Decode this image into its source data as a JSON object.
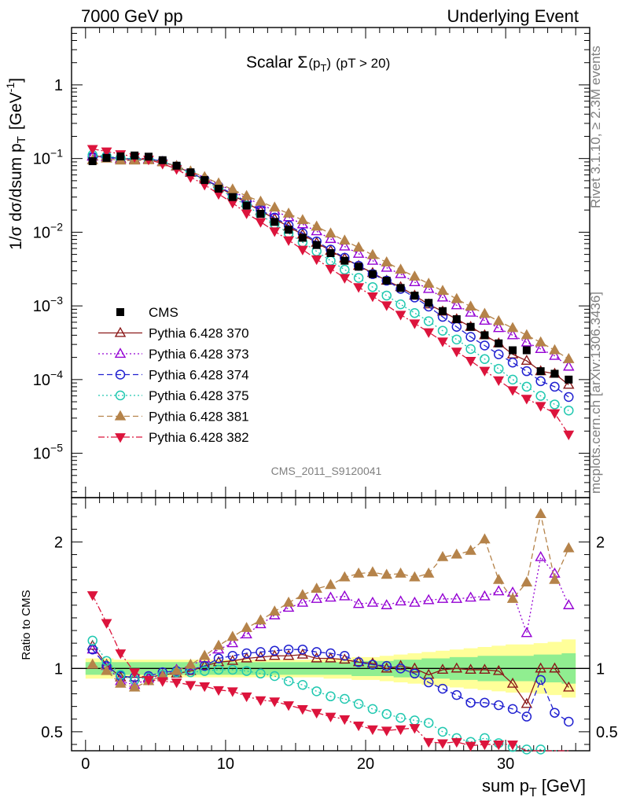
{
  "header": {
    "left_title": "7000 GeV pp",
    "right_title": "Underlying Event"
  },
  "side_labels": {
    "rivet": "Rivet 3.1.10, ≥ 2.3M events",
    "mcplots": "mcplots.cern.ch [arXiv:1306.3436]"
  },
  "analysis_id": "CMS_2011_S9120041",
  "chart_data": [
    {
      "type": "scatter",
      "panel": "main",
      "title_main": "Scalar Σ",
      "title_sub": "(p",
      "title_subsub": "T",
      "title_close": ")",
      "title_cut": "(pT > 20)",
      "ylabel": "1/σ dσ/dsum p",
      "ylabel_sub": "T",
      "ylabel_unit": "[GeV",
      "ylabel_unit_sup": "-1",
      "ylabel_unit_close": "]",
      "yscale": "log",
      "ylim": [
        2.5e-06,
        6
      ],
      "xlim": [
        -1,
        36
      ],
      "yticks": [
        {
          "value": 1,
          "label": "1",
          "sup": ""
        },
        {
          "value": 0.1,
          "label": "10",
          "sup": "−1"
        },
        {
          "value": 0.01,
          "label": "10",
          "sup": "−2"
        },
        {
          "value": 0.001,
          "label": "10",
          "sup": "−3"
        },
        {
          "value": 0.0001,
          "label": "10",
          "sup": "−4"
        },
        {
          "value": 1e-05,
          "label": "10",
          "sup": "−5"
        }
      ],
      "legend_position": "middle-left",
      "x": [
        0.5,
        1.5,
        2.5,
        3.5,
        4.5,
        5.5,
        6.5,
        7.5,
        8.5,
        9.5,
        10.5,
        11.5,
        12.5,
        13.5,
        14.5,
        15.5,
        16.5,
        17.5,
        18.5,
        19.5,
        20.5,
        21.5,
        22.5,
        23.5,
        24.5,
        25.5,
        26.5,
        27.5,
        28.5,
        29.5,
        30.5,
        31.5,
        32.5,
        33.5,
        34.5
      ],
      "series": [
        {
          "name": "CMS",
          "key": "cms",
          "values": [
            0.092,
            0.102,
            0.107,
            0.11,
            0.106,
            0.095,
            0.08,
            0.065,
            0.051,
            0.039,
            0.03,
            0.023,
            0.0178,
            0.0138,
            0.0108,
            0.0084,
            0.0067,
            0.0052,
            0.0041,
            0.0034,
            0.0027,
            0.0022,
            0.00175,
            0.00138,
            0.0011,
            0.00085,
            0.00066,
            0.00052,
            0.0004,
            0.00031,
            0.00025,
            0.00025,
            0.00013,
            0.00012,
            0.0001
          ]
        },
        {
          "name": "Pythia 6.428 370",
          "key": "p370",
          "values": [
            0.108,
            0.105,
            0.1,
            0.097,
            0.098,
            0.09,
            0.078,
            0.064,
            0.052,
            0.041,
            0.032,
            0.025,
            0.0195,
            0.0152,
            0.0119,
            0.0093,
            0.0072,
            0.0056,
            0.0044,
            0.0035,
            0.0028,
            0.0022,
            0.0018,
            0.00138,
            0.00105,
            0.00084,
            0.00066,
            0.00052,
            0.0004,
            0.00031,
            0.00022,
            0.00018,
            0.00013,
            0.00012,
            8.5e-05
          ]
        },
        {
          "name": "Pythia 6.428 373",
          "key": "p373",
          "values": [
            0.106,
            0.104,
            0.097,
            0.095,
            0.097,
            0.09,
            0.079,
            0.066,
            0.055,
            0.045,
            0.036,
            0.029,
            0.024,
            0.0196,
            0.016,
            0.0128,
            0.0103,
            0.0081,
            0.0064,
            0.0051,
            0.0041,
            0.0033,
            0.0027,
            0.0021,
            0.0017,
            0.0013,
            0.00102,
            0.00081,
            0.00063,
            0.0005,
            0.0004,
            0.00032,
            0.00026,
            0.00021,
            0.00015
          ]
        },
        {
          "name": "Pythia 6.428 374",
          "key": "p374",
          "values": [
            0.105,
            0.104,
            0.1,
            0.1,
            0.099,
            0.092,
            0.078,
            0.064,
            0.052,
            0.042,
            0.033,
            0.026,
            0.02,
            0.0158,
            0.0124,
            0.0097,
            0.0075,
            0.0058,
            0.0045,
            0.0035,
            0.0027,
            0.0022,
            0.0017,
            0.0013,
            0.00098,
            0.00071,
            0.00052,
            0.00038,
            0.00029,
            0.00022,
            0.00017,
            0.00013,
            9.5e-05,
            8e-05,
            5.8e-05
          ]
        },
        {
          "name": "Pythia 6.428 375",
          "key": "p375",
          "values": [
            0.112,
            0.108,
            0.102,
            0.099,
            0.098,
            0.09,
            0.078,
            0.063,
            0.05,
            0.039,
            0.03,
            0.023,
            0.0172,
            0.0129,
            0.0097,
            0.0073,
            0.0055,
            0.0041,
            0.0031,
            0.0024,
            0.0018,
            0.00138,
            0.00105,
            0.0008,
            0.00062,
            0.00046,
            0.00035,
            0.00026,
            0.00019,
            0.00014,
            0.0001,
            8e-05,
            6e-05,
            4.6e-05,
            3.8e-05
          ]
        },
        {
          "name": "Pythia 6.428 381",
          "key": "p381",
          "values": [
            0.095,
            0.1,
            0.094,
            0.094,
            0.095,
            0.089,
            0.079,
            0.067,
            0.056,
            0.046,
            0.038,
            0.031,
            0.026,
            0.0216,
            0.0179,
            0.0146,
            0.0119,
            0.0096,
            0.0077,
            0.0062,
            0.0049,
            0.0039,
            0.0031,
            0.0025,
            0.002,
            0.0016,
            0.00124,
            0.00098,
            0.00078,
            0.00062,
            0.0005,
            0.0004,
            0.00032,
            0.00025,
            0.00019
          ]
        },
        {
          "name": "Pythia 6.428 382",
          "key": "p382",
          "values": [
            0.135,
            0.125,
            0.115,
            0.105,
            0.097,
            0.085,
            0.072,
            0.056,
            0.044,
            0.033,
            0.025,
            0.018,
            0.0138,
            0.0103,
            0.0078,
            0.0058,
            0.0043,
            0.0032,
            0.0024,
            0.0018,
            0.00135,
            0.00102,
            0.00076,
            0.00058,
            0.00044,
            0.00033,
            0.00024,
            0.00018,
            0.000132,
            9.8e-05,
            7.2e-05,
            5.5e-05,
            4.4e-05,
            3.5e-05,
            1.8e-05
          ]
        }
      ]
    },
    {
      "type": "scatter",
      "panel": "ratio",
      "ylabel": "Ratio to CMS",
      "xlabel": "sum p",
      "xlabel_sub": "T",
      "xlabel_unit": "[GeV]",
      "ylim": [
        0.35,
        2.35
      ],
      "xlim": [
        -1,
        36
      ],
      "yticks": [
        0.5,
        1,
        2
      ],
      "ytick_labels": [
        "0.5",
        "1",
        "2"
      ],
      "xticks": [
        0,
        10,
        20,
        30
      ],
      "xtick_labels": [
        "0",
        "10",
        "20",
        "30"
      ],
      "band_green_halfwidth": [
        0.05,
        0.05,
        0.05,
        0.05,
        0.05,
        0.05,
        0.05,
        0.05,
        0.05,
        0.05,
        0.05,
        0.05,
        0.05,
        0.05,
        0.05,
        0.05,
        0.05,
        0.05,
        0.05,
        0.06,
        0.06,
        0.06,
        0.07,
        0.07,
        0.08,
        0.08,
        0.09,
        0.09,
        0.1,
        0.1,
        0.1,
        0.1,
        0.11,
        0.11,
        0.12
      ],
      "band_yellow_halfwidth": [
        0.08,
        0.08,
        0.07,
        0.07,
        0.07,
        0.07,
        0.07,
        0.07,
        0.07,
        0.07,
        0.07,
        0.07,
        0.07,
        0.07,
        0.07,
        0.07,
        0.07,
        0.08,
        0.08,
        0.09,
        0.09,
        0.1,
        0.11,
        0.12,
        0.13,
        0.14,
        0.15,
        0.16,
        0.17,
        0.18,
        0.19,
        0.19,
        0.2,
        0.21,
        0.23
      ],
      "series": [
        {
          "name": "Pythia 6.428 370",
          "key": "p370",
          "values": [
            1.18,
            1.03,
            0.93,
            0.93,
            0.93,
            0.95,
            0.96,
            0.98,
            1.02,
            1.05,
            1.06,
            1.08,
            1.09,
            1.1,
            1.1,
            1.11,
            1.08,
            1.08,
            1.07,
            1.05,
            1.04,
            1.0,
            1.02,
            1.0,
            0.95,
            0.99,
            1.0,
            0.99,
            0.99,
            0.98,
            0.88,
            0.72,
            1.0,
            1.0,
            0.85
          ]
        },
        {
          "name": "Pythia 6.428 373",
          "key": "p373",
          "values": [
            1.15,
            1.02,
            0.9,
            0.87,
            0.92,
            0.95,
            0.99,
            1.02,
            1.08,
            1.15,
            1.2,
            1.27,
            1.35,
            1.42,
            1.48,
            1.52,
            1.55,
            1.56,
            1.57,
            1.51,
            1.52,
            1.5,
            1.53,
            1.52,
            1.54,
            1.55,
            1.55,
            1.56,
            1.57,
            1.61,
            1.6,
            1.28,
            1.88,
            1.75,
            1.5
          ]
        },
        {
          "name": "Pythia 6.428 374",
          "key": "p374",
          "values": [
            1.15,
            1.02,
            0.94,
            0.93,
            0.94,
            0.97,
            0.98,
            0.99,
            1.02,
            1.08,
            1.1,
            1.12,
            1.13,
            1.14,
            1.15,
            1.15,
            1.13,
            1.12,
            1.1,
            1.05,
            1.03,
            1.02,
            1.0,
            0.96,
            0.89,
            0.84,
            0.79,
            0.73,
            0.73,
            0.71,
            0.68,
            0.62,
            0.91,
            0.65,
            0.58
          ]
        },
        {
          "name": "Pythia 6.428 375",
          "key": "p375",
          "values": [
            1.22,
            1.06,
            0.95,
            0.91,
            0.93,
            0.95,
            0.97,
            0.97,
            0.98,
            0.99,
            0.99,
            0.98,
            0.96,
            0.94,
            0.9,
            0.87,
            0.82,
            0.78,
            0.76,
            0.72,
            0.68,
            0.64,
            0.61,
            0.59,
            0.57,
            0.5,
            0.45,
            0.42,
            0.45,
            0.41,
            0.38,
            0.36,
            0.36,
            0.35,
            0.35
          ]
        },
        {
          "name": "Pythia 6.428 381",
          "key": "p381",
          "values": [
            1.03,
            0.98,
            0.88,
            0.85,
            0.9,
            0.94,
            0.98,
            1.03,
            1.1,
            1.18,
            1.25,
            1.32,
            1.38,
            1.45,
            1.52,
            1.58,
            1.63,
            1.66,
            1.72,
            1.75,
            1.76,
            1.74,
            1.75,
            1.72,
            1.75,
            1.88,
            1.9,
            1.93,
            2.02,
            1.7,
            1.55,
            1.68,
            2.22,
            1.7,
            1.95
          ]
        },
        {
          "name": "Pythia 6.428 382",
          "key": "p382",
          "values": [
            1.58,
            1.36,
            1.12,
            0.97,
            0.91,
            0.9,
            0.89,
            0.87,
            0.86,
            0.83,
            0.82,
            0.78,
            0.75,
            0.74,
            0.71,
            0.68,
            0.65,
            0.62,
            0.6,
            0.55,
            0.52,
            0.51,
            0.52,
            0.53,
            0.42,
            0.41,
            0.42,
            0.39,
            0.4,
            0.4,
            0.4,
            0.35,
            0.35,
            0.35,
            0.35
          ]
        }
      ]
    }
  ],
  "styles": {
    "cms": {
      "color": "#000000",
      "marker": "square-filled",
      "dash": ""
    },
    "p370": {
      "color": "#8b1a1a",
      "marker": "triangle-up-open",
      "dash": ""
    },
    "p373": {
      "color": "#9400d3",
      "marker": "triangle-up-open",
      "dash": "2,3"
    },
    "p374": {
      "color": "#2020d0",
      "marker": "circle-open",
      "dash": "7,4"
    },
    "p375": {
      "color": "#20c8b0",
      "marker": "circle-open",
      "dash": "2,3"
    },
    "p381": {
      "color": "#b5834a",
      "marker": "triangle-up-filled",
      "dash": "7,4"
    },
    "p382": {
      "color": "#dc143c",
      "marker": "triangle-down-filled",
      "dash": "8,3,2,3"
    },
    "band_green": "#90ee90",
    "band_yellow": "#ffff99"
  }
}
